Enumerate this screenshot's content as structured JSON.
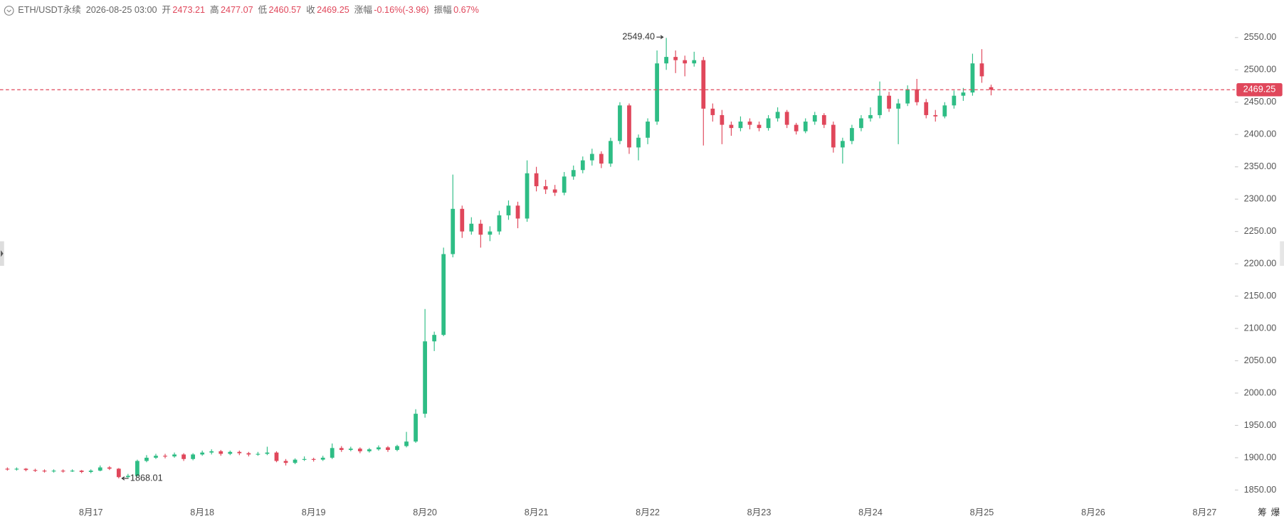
{
  "header": {
    "symbol": "ETH/USDT永续",
    "time": "2026-08-25 03:00",
    "fields": [
      {
        "label": "开",
        "value": "2473.21"
      },
      {
        "label": "高",
        "value": "2477.07"
      },
      {
        "label": "低",
        "value": "2460.57"
      },
      {
        "label": "收",
        "value": "2469.25"
      },
      {
        "label": "涨幅",
        "value": "-0.16%(-3.96)"
      },
      {
        "label": "振幅",
        "value": "0.67%"
      }
    ]
  },
  "side_buttons": [
    "筹",
    "爆"
  ],
  "chart_data": {
    "type": "candlestick",
    "up_color": "#2ebd85",
    "down_color": "#e0475b",
    "ylim": [
      1830,
      2608
    ],
    "yticks": [
      {
        "value": 1850,
        "label": "1850.00"
      },
      {
        "value": 1900,
        "label": "1900.00"
      },
      {
        "value": 1950,
        "label": "1950.00"
      },
      {
        "value": 2000,
        "label": "2000.00"
      },
      {
        "value": 2050,
        "label": "2050.00"
      },
      {
        "value": 2100,
        "label": "2100.00"
      },
      {
        "value": 2150,
        "label": "2150.00"
      },
      {
        "value": 2200,
        "label": "2200.00"
      },
      {
        "value": 2250,
        "label": "2250.00"
      },
      {
        "value": 2300,
        "label": "2300.00"
      },
      {
        "value": 2350,
        "label": "2350.00"
      },
      {
        "value": 2400,
        "label": "2400.00"
      },
      {
        "value": 2450,
        "label": "2450.00"
      },
      {
        "value": 2500,
        "label": "2500.00"
      },
      {
        "value": 2550,
        "label": "2550.00"
      }
    ],
    "xlabels": [
      "8月17",
      "8月18",
      "8月19",
      "8月20",
      "8月21",
      "8月22",
      "8月23",
      "8月24",
      "8月25",
      "8月26",
      "8月27"
    ],
    "high_label": "2549.40",
    "low_label": "1868.01",
    "last_price": 2469.25,
    "last_price_label": "2469.25",
    "ohlc": [
      [
        1883,
        1885,
        1880,
        1882
      ],
      [
        1882,
        1885,
        1880,
        1883
      ],
      [
        1883,
        1884,
        1879,
        1881
      ],
      [
        1881,
        1883,
        1878,
        1880
      ],
      [
        1880,
        1882,
        1877,
        1879
      ],
      [
        1879,
        1882,
        1877,
        1880
      ],
      [
        1880,
        1882,
        1877,
        1879
      ],
      [
        1879,
        1882,
        1878,
        1880
      ],
      [
        1880,
        1881,
        1876,
        1878
      ],
      [
        1878,
        1882,
        1876,
        1880
      ],
      [
        1880,
        1888,
        1879,
        1885
      ],
      [
        1885,
        1887,
        1881,
        1883
      ],
      [
        1883,
        1884,
        1868.01,
        1870
      ],
      [
        1870,
        1875,
        1869,
        1872
      ],
      [
        1872,
        1897,
        1871,
        1895
      ],
      [
        1895,
        1904,
        1893,
        1900
      ],
      [
        1900,
        1906,
        1898,
        1903
      ],
      [
        1903,
        1906,
        1899,
        1902
      ],
      [
        1902,
        1908,
        1900,
        1905
      ],
      [
        1905,
        1907,
        1895,
        1898
      ],
      [
        1898,
        1907,
        1896,
        1905
      ],
      [
        1905,
        1911,
        1903,
        1908
      ],
      [
        1908,
        1913,
        1905,
        1910
      ],
      [
        1910,
        1912,
        1903,
        1906
      ],
      [
        1906,
        1911,
        1904,
        1909
      ],
      [
        1909,
        1911,
        1904,
        1907
      ],
      [
        1907,
        1909,
        1902,
        1905
      ],
      [
        1905,
        1909,
        1903,
        1906
      ],
      [
        1906,
        1917,
        1904,
        1908
      ],
      [
        1908,
        1910,
        1893,
        1895
      ],
      [
        1895,
        1898,
        1888,
        1892
      ],
      [
        1892,
        1899,
        1890,
        1897
      ],
      [
        1897,
        1902,
        1895,
        1898
      ],
      [
        1898,
        1900,
        1894,
        1897
      ],
      [
        1897,
        1903,
        1895,
        1900
      ],
      [
        1900,
        1922,
        1898,
        1915
      ],
      [
        1915,
        1918,
        1909,
        1912
      ],
      [
        1912,
        1917,
        1910,
        1914
      ],
      [
        1914,
        1916,
        1907,
        1910
      ],
      [
        1910,
        1915,
        1908,
        1913
      ],
      [
        1913,
        1919,
        1911,
        1916
      ],
      [
        1916,
        1918,
        1909,
        1912
      ],
      [
        1912,
        1920,
        1910,
        1918
      ],
      [
        1918,
        1940,
        1916,
        1925
      ],
      [
        1925,
        1975,
        1923,
        1968
      ],
      [
        1968,
        2130,
        1962,
        2080
      ],
      [
        2080,
        2095,
        2065,
        2090
      ],
      [
        2090,
        2225,
        2088,
        2215
      ],
      [
        2215,
        2338,
        2210,
        2285
      ],
      [
        2285,
        2290,
        2240,
        2250
      ],
      [
        2250,
        2272,
        2245,
        2262
      ],
      [
        2262,
        2268,
        2225,
        2245
      ],
      [
        2245,
        2258,
        2235,
        2250
      ],
      [
        2250,
        2282,
        2245,
        2275
      ],
      [
        2275,
        2298,
        2268,
        2290
      ],
      [
        2290,
        2296,
        2255,
        2270
      ],
      [
        2270,
        2360,
        2265,
        2340
      ],
      [
        2340,
        2350,
        2312,
        2320
      ],
      [
        2320,
        2330,
        2308,
        2315
      ],
      [
        2315,
        2322,
        2305,
        2310
      ],
      [
        2310,
        2342,
        2306,
        2335
      ],
      [
        2335,
        2352,
        2330,
        2345
      ],
      [
        2345,
        2366,
        2340,
        2360
      ],
      [
        2360,
        2378,
        2352,
        2370
      ],
      [
        2370,
        2374,
        2348,
        2355
      ],
      [
        2355,
        2395,
        2350,
        2390
      ],
      [
        2390,
        2450,
        2385,
        2445
      ],
      [
        2445,
        2448,
        2370,
        2380
      ],
      [
        2380,
        2400,
        2360,
        2395
      ],
      [
        2395,
        2425,
        2385,
        2420
      ],
      [
        2420,
        2530,
        2415,
        2510
      ],
      [
        2510,
        2549.4,
        2500,
        2520
      ],
      [
        2520,
        2530,
        2495,
        2515
      ],
      [
        2515,
        2522,
        2490,
        2510
      ],
      [
        2510,
        2528,
        2505,
        2515
      ],
      [
        2515,
        2520,
        2383,
        2440
      ],
      [
        2440,
        2448,
        2420,
        2430
      ],
      [
        2430,
        2438,
        2385,
        2415
      ],
      [
        2415,
        2420,
        2398,
        2410
      ],
      [
        2410,
        2428,
        2405,
        2420
      ],
      [
        2420,
        2425,
        2408,
        2415
      ],
      [
        2415,
        2420,
        2405,
        2410
      ],
      [
        2410,
        2430,
        2406,
        2425
      ],
      [
        2425,
        2442,
        2420,
        2435
      ],
      [
        2435,
        2438,
        2410,
        2415
      ],
      [
        2415,
        2418,
        2400,
        2405
      ],
      [
        2405,
        2425,
        2402,
        2420
      ],
      [
        2420,
        2435,
        2415,
        2430
      ],
      [
        2430,
        2433,
        2410,
        2415
      ],
      [
        2415,
        2420,
        2372,
        2380
      ],
      [
        2380,
        2395,
        2355,
        2390
      ],
      [
        2390,
        2415,
        2385,
        2410
      ],
      [
        2410,
        2430,
        2405,
        2425
      ],
      [
        2425,
        2442,
        2420,
        2430
      ],
      [
        2430,
        2482,
        2425,
        2460
      ],
      [
        2460,
        2466,
        2435,
        2440
      ],
      [
        2440,
        2455,
        2385,
        2448
      ],
      [
        2448,
        2476,
        2444,
        2470
      ],
      [
        2470,
        2486,
        2445,
        2450
      ],
      [
        2450,
        2455,
        2425,
        2430
      ],
      [
        2430,
        2438,
        2420,
        2428
      ],
      [
        2428,
        2450,
        2425,
        2445
      ],
      [
        2445,
        2468,
        2440,
        2460
      ],
      [
        2460,
        2472,
        2452,
        2465
      ],
      [
        2465,
        2525,
        2460,
        2510
      ],
      [
        2510,
        2532,
        2480,
        2490
      ],
      [
        2473.21,
        2477.07,
        2460.57,
        2469.25
      ]
    ]
  }
}
